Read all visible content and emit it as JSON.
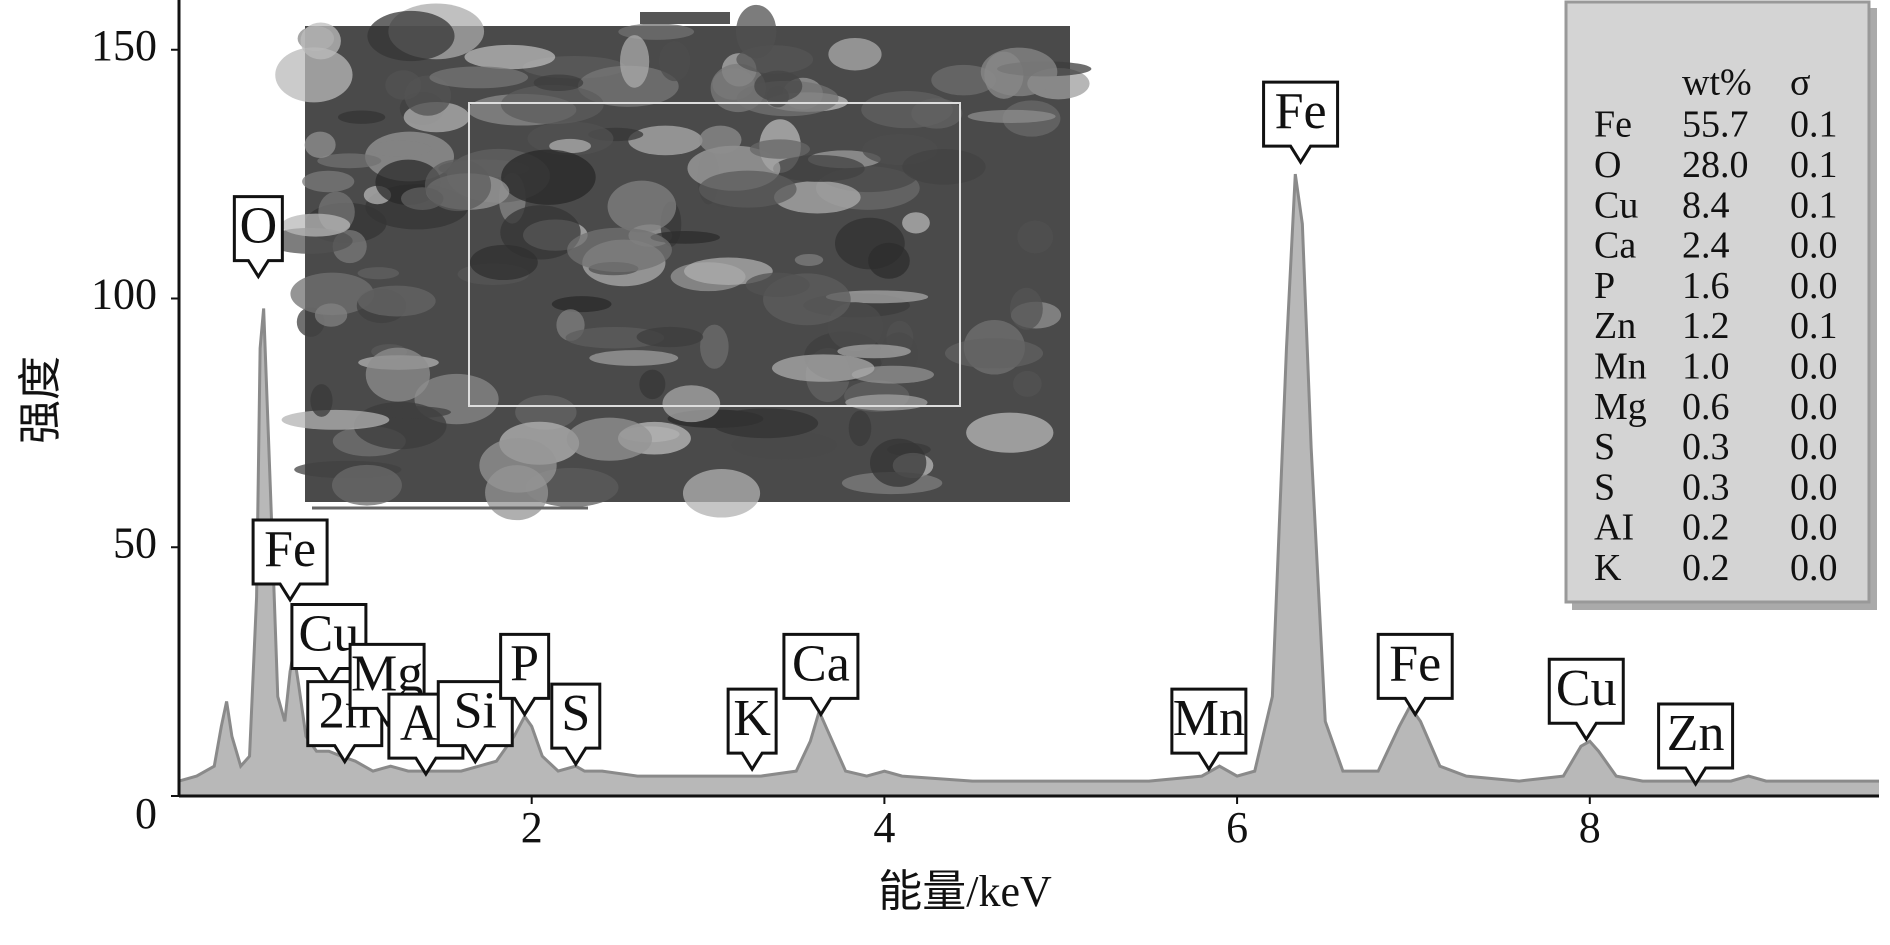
{
  "chart_data": {
    "type": "area",
    "x_label": "能量/keV",
    "y_label": "强度",
    "x": [
      0,
      0.1,
      0.2,
      0.24,
      0.27,
      0.3,
      0.35,
      0.4,
      0.44,
      0.46,
      0.48,
      0.52,
      0.56,
      0.6,
      0.63,
      0.65,
      0.68,
      0.72,
      0.78,
      0.85,
      0.92,
      1.0,
      1.1,
      1.2,
      1.3,
      1.4,
      1.5,
      1.6,
      1.7,
      1.8,
      1.9,
      1.96,
      2.0,
      2.06,
      2.15,
      2.25,
      2.3,
      2.4,
      2.6,
      3.0,
      3.3,
      3.5,
      3.58,
      3.63,
      3.68,
      3.78,
      3.9,
      4.0,
      4.1,
      4.5,
      5.0,
      5.5,
      5.8,
      5.9,
      6.0,
      6.1,
      6.2,
      6.28,
      6.33,
      6.37,
      6.42,
      6.5,
      6.6,
      6.8,
      6.92,
      6.98,
      7.04,
      7.15,
      7.3,
      7.6,
      7.85,
      7.95,
      8.0,
      8.05,
      8.15,
      8.3,
      8.6,
      8.8,
      8.9,
      9.0,
      9.3,
      9.64
    ],
    "values": [
      3,
      4,
      6,
      14,
      19,
      12,
      6,
      8,
      40,
      90,
      98,
      60,
      20,
      15,
      25,
      29,
      22,
      12,
      9,
      9,
      8,
      7,
      5,
      6,
      5,
      5,
      5,
      5,
      6,
      7,
      12,
      16,
      14,
      8,
      5,
      6,
      5,
      5,
      4,
      4,
      4,
      5,
      11,
      17,
      13,
      5,
      4,
      5,
      4,
      3,
      3,
      3,
      4,
      6,
      4,
      5,
      20,
      90,
      125,
      115,
      70,
      15,
      5,
      5,
      14,
      18,
      15,
      6,
      4,
      3,
      4,
      10,
      11,
      9,
      4,
      3,
      3,
      3,
      4,
      3,
      3,
      3
    ],
    "color": "#b8b8b8",
    "xlim": [
      0,
      9.64
    ],
    "ylim": [
      0,
      160
    ],
    "xticks": [
      2,
      4,
      6,
      8
    ],
    "yticks": [
      0,
      50,
      100,
      150
    ],
    "peak_labels": [
      {
        "text": "O",
        "x": 0.45,
        "y": 104
      },
      {
        "text": "Fe",
        "x": 0.63,
        "y": 39
      },
      {
        "text": "Cu",
        "x": 0.85,
        "y": 22
      },
      {
        "text": "2n",
        "x": 0.94,
        "y": 6.5
      },
      {
        "text": "Mg",
        "x": 1.18,
        "y": 14
      },
      {
        "text": "Al",
        "x": 1.4,
        "y": 4
      },
      {
        "text": "Si",
        "x": 1.68,
        "y": 6.5
      },
      {
        "text": "P",
        "x": 1.96,
        "y": 16
      },
      {
        "text": "S",
        "x": 2.25,
        "y": 6
      },
      {
        "text": "K",
        "x": 3.25,
        "y": 5
      },
      {
        "text": "Ca",
        "x": 3.64,
        "y": 16
      },
      {
        "text": "Mn",
        "x": 5.84,
        "y": 5
      },
      {
        "text": "Fe",
        "x": 6.36,
        "y": 127
      },
      {
        "text": "Fe",
        "x": 7.01,
        "y": 16
      },
      {
        "text": "Cu",
        "x": 7.98,
        "y": 11
      },
      {
        "text": "Zn",
        "x": 8.6,
        "y": 2
      }
    ],
    "table": {
      "columns": [
        "wt%",
        "σ"
      ],
      "rows": [
        [
          "Fe",
          "55.7",
          "0.1"
        ],
        [
          "O",
          "28.0",
          "0.1"
        ],
        [
          "Cu",
          "8.4",
          "0.1"
        ],
        [
          "Ca",
          "2.4",
          "0.0"
        ],
        [
          "P",
          "1.6",
          "0.0"
        ],
        [
          "Zn",
          "1.2",
          "0.1"
        ],
        [
          "Mn",
          "1.0",
          "0.0"
        ],
        [
          "Mg",
          "0.6",
          "0.0"
        ],
        [
          "S",
          "0.3",
          "0.0"
        ],
        [
          "S",
          "0.3",
          "0.0"
        ],
        [
          "AI",
          "0.2",
          "0.0"
        ],
        [
          "K",
          "0.2",
          "0.0"
        ]
      ]
    }
  }
}
